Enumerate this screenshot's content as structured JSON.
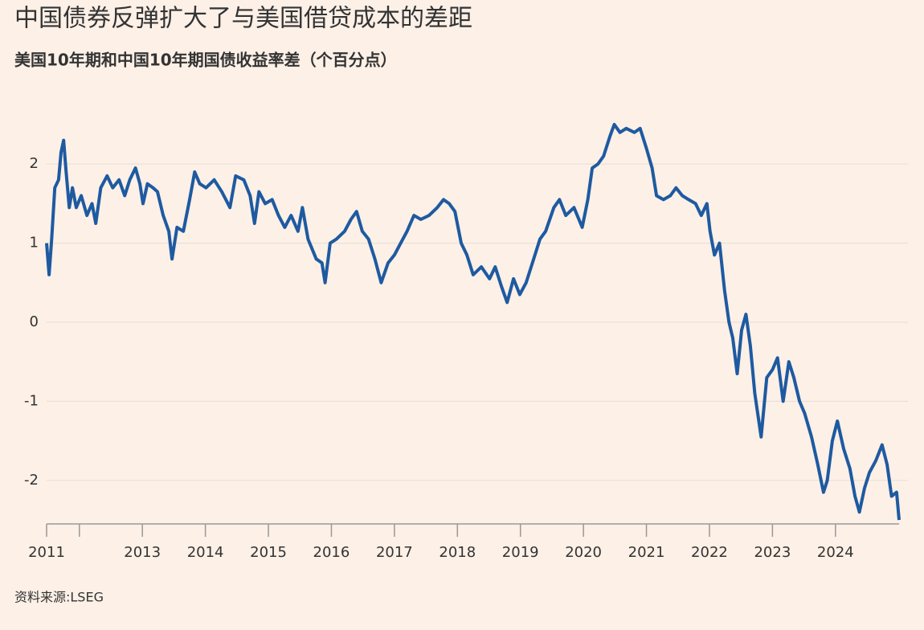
{
  "chart_data": {
    "type": "line",
    "title": "中国债券反弹扩大了与美国借贷成本的差距",
    "subtitle": "美国10年期和中国10年期国债收益率差（个百分点）",
    "source": "资料来源:LSEG",
    "x": [
      2011.48,
      2011.52,
      2011.56,
      2011.61,
      2011.67,
      2011.71,
      2011.75,
      2011.79,
      2011.84,
      2011.89,
      2011.95,
      2012.03,
      2012.12,
      2012.2,
      2012.26,
      2012.34,
      2012.44,
      2012.53,
      2012.63,
      2012.72,
      2012.8,
      2012.89,
      2012.96,
      2013.01,
      2013.08,
      2013.17,
      2013.24,
      2013.33,
      2013.42,
      2013.47,
      2013.55,
      2013.65,
      2013.75,
      2013.83,
      2013.91,
      2014.01,
      2014.14,
      2014.26,
      2014.39,
      2014.48,
      2014.61,
      2014.71,
      2014.78,
      2014.85,
      2014.95,
      2015.06,
      2015.16,
      2015.26,
      2015.36,
      2015.47,
      2015.54,
      2015.63,
      2015.76,
      2015.85,
      2015.9,
      2015.98,
      2016.08,
      2016.21,
      2016.31,
      2016.4,
      2016.49,
      2016.59,
      2016.69,
      2016.79,
      2016.9,
      2017.0,
      2017.1,
      2017.2,
      2017.31,
      2017.42,
      2017.55,
      2017.68,
      2017.78,
      2017.87,
      2017.96,
      2018.06,
      2018.15,
      2018.25,
      2018.38,
      2018.51,
      2018.6,
      2018.7,
      2018.79,
      2018.89,
      2018.99,
      2019.09,
      2019.21,
      2019.31,
      2019.4,
      2019.53,
      2019.62,
      2019.72,
      2019.85,
      2019.98,
      2020.07,
      2020.14,
      2020.23,
      2020.32,
      2020.42,
      2020.49,
      2020.58,
      2020.68,
      2020.81,
      2020.9,
      2021.0,
      2021.09,
      2021.16,
      2021.27,
      2021.38,
      2021.47,
      2021.57,
      2021.67,
      2021.78,
      2021.87,
      2021.96,
      2022.01,
      2022.08,
      2022.16,
      2022.24,
      2022.31,
      2022.37,
      2022.44,
      2022.51,
      2022.58,
      2022.65,
      2022.72,
      2022.82,
      2022.91,
      2023.0,
      2023.08,
      2023.17,
      2023.26,
      2023.34,
      2023.43,
      2023.51,
      2023.62,
      2023.72,
      2023.81,
      2023.87,
      2023.95,
      2024.03,
      2024.13,
      2024.23,
      2024.31,
      2024.38,
      2024.46,
      2024.54,
      2024.64,
      2024.74,
      2024.82,
      2024.89,
      2024.97,
      2025.01
    ],
    "series": [
      {
        "color": "#1e5aa0",
        "values": [
          1.0,
          0.6,
          1.05,
          1.7,
          1.8,
          2.15,
          2.3,
          1.9,
          1.45,
          1.7,
          1.45,
          1.6,
          1.35,
          1.5,
          1.25,
          1.7,
          1.85,
          1.7,
          1.8,
          1.6,
          1.8,
          1.95,
          1.75,
          1.5,
          1.75,
          1.7,
          1.65,
          1.35,
          1.15,
          0.8,
          1.2,
          1.15,
          1.55,
          1.9,
          1.75,
          1.7,
          1.8,
          1.65,
          1.45,
          1.85,
          1.8,
          1.6,
          1.25,
          1.65,
          1.5,
          1.55,
          1.35,
          1.2,
          1.35,
          1.15,
          1.45,
          1.05,
          0.8,
          0.75,
          0.5,
          1.0,
          1.05,
          1.15,
          1.3,
          1.4,
          1.15,
          1.05,
          0.8,
          0.5,
          0.75,
          0.85,
          1.0,
          1.15,
          1.35,
          1.3,
          1.35,
          1.45,
          1.55,
          1.5,
          1.4,
          1.0,
          0.85,
          0.6,
          0.7,
          0.55,
          0.7,
          0.45,
          0.25,
          0.55,
          0.35,
          0.5,
          0.8,
          1.05,
          1.15,
          1.45,
          1.55,
          1.35,
          1.45,
          1.2,
          1.55,
          1.95,
          2.0,
          2.1,
          2.35,
          2.5,
          2.4,
          2.45,
          2.4,
          2.45,
          2.2,
          1.95,
          1.6,
          1.55,
          1.6,
          1.7,
          1.6,
          1.55,
          1.5,
          1.35,
          1.5,
          1.15,
          0.85,
          1.0,
          0.4,
          0.0,
          -0.2,
          -0.65,
          -0.1,
          0.1,
          -0.3,
          -0.9,
          -1.45,
          -0.7,
          -0.6,
          -0.45,
          -1.0,
          -0.5,
          -0.7,
          -1.0,
          -1.15,
          -1.45,
          -1.8,
          -2.15,
          -2.0,
          -1.5,
          -1.25,
          -1.6,
          -1.85,
          -2.2,
          -2.4,
          -2.1,
          -1.9,
          -1.75,
          -1.55,
          -1.8,
          -2.2,
          -2.15,
          -2.5
        ]
      }
    ],
    "xlim": [
      2011.48,
      2025.01
    ],
    "xticks": [
      {
        "value": 2011.48,
        "label": "2011"
      },
      2013,
      2014,
      2015,
      2016,
      2017,
      2018,
      2019,
      2020,
      2021,
      2022,
      2023,
      2024
    ],
    "xminorticks": [
      2012
    ],
    "ylim": [
      -2.55,
      2.55
    ],
    "yticks": [
      -2,
      -1,
      0,
      1,
      2
    ],
    "grid": true
  }
}
